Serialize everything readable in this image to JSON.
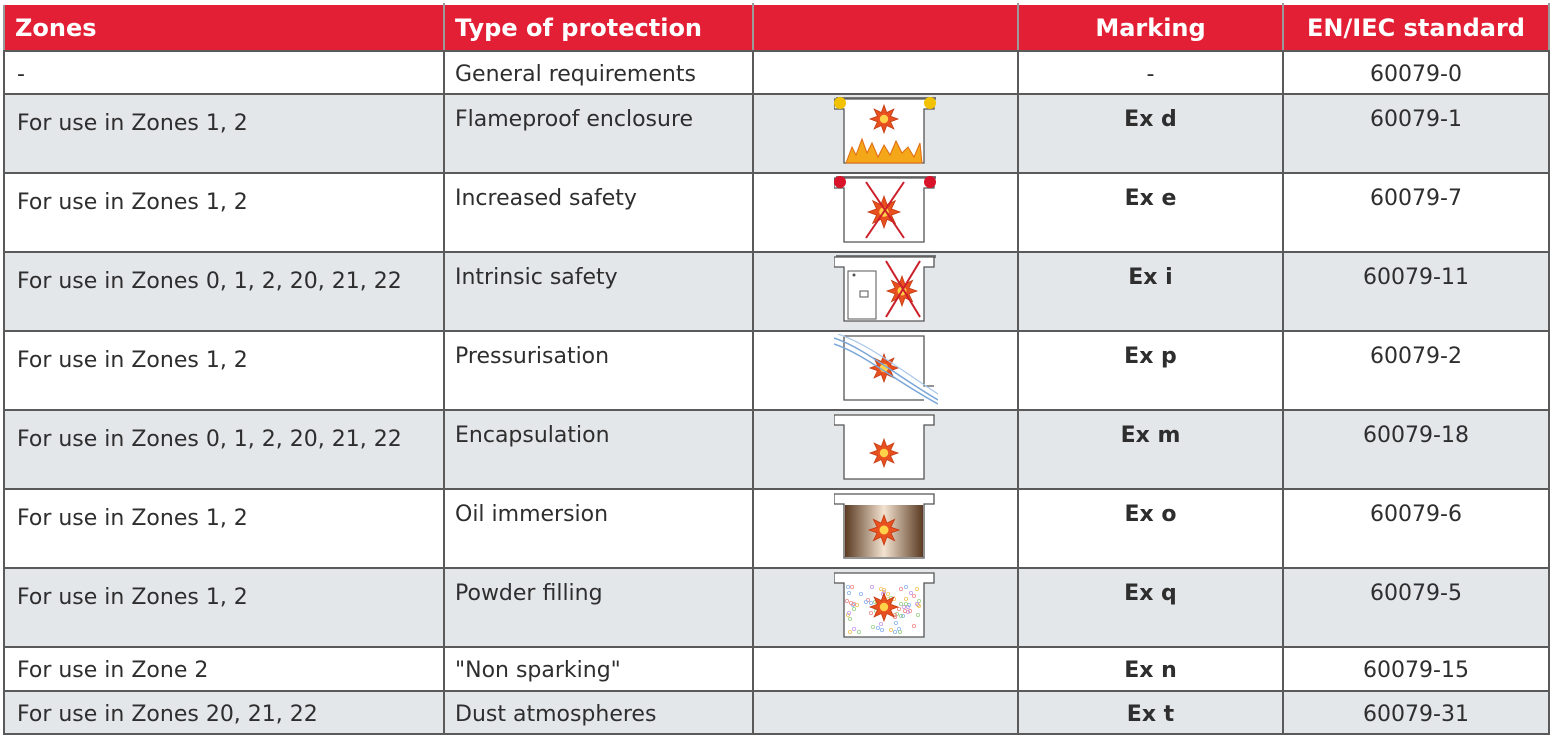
{
  "headers": {
    "zones": "Zones",
    "type": "Type of protection",
    "icon": "",
    "marking": "Marking",
    "standard": "EN/IEC standard"
  },
  "rows": [
    {
      "zones": "-",
      "type": "General requirements",
      "icon": "none",
      "marking": "-",
      "standard": "60079-0",
      "marking_bold": false
    },
    {
      "zones": "For use in Zones 1, 2",
      "type": "Flameproof enclosure",
      "icon": "flameproof-enclosure-icon",
      "marking": "Ex d",
      "standard": "60079-1",
      "marking_bold": true
    },
    {
      "zones": "For use in Zones 1, 2",
      "type": "Increased safety",
      "icon": "increased-safety-icon",
      "marking": "Ex e",
      "standard": "60079-7",
      "marking_bold": true
    },
    {
      "zones": "For use in Zones 0, 1, 2, 20, 21, 22",
      "type": "Intrinsic safety",
      "icon": "intrinsic-safety-icon",
      "marking": "Ex i",
      "standard": "60079-11",
      "marking_bold": true
    },
    {
      "zones": "For use in Zones 1, 2",
      "type": "Pressurisation",
      "icon": "pressurisation-icon",
      "marking": "Ex p",
      "standard": "60079-2",
      "marking_bold": true
    },
    {
      "zones": "For use in Zones 0, 1, 2, 20, 21, 22",
      "type": "Encapsulation",
      "icon": "encapsulation-icon",
      "marking": "Ex m",
      "standard": "60079-18",
      "marking_bold": true
    },
    {
      "zones": "For use in Zones 1, 2",
      "type": "Oil immersion",
      "icon": "oil-immersion-icon",
      "marking": "Ex o",
      "standard": "60079-6",
      "marking_bold": true
    },
    {
      "zones": "For use in Zones 1, 2",
      "type": "Powder filling",
      "icon": "powder-filling-icon",
      "marking": "Ex q",
      "standard": "60079-5",
      "marking_bold": true
    },
    {
      "zones": "For use in Zone 2",
      "type": "\"Non sparking\"",
      "icon": "none",
      "marking": "Ex n",
      "standard": "60079-15",
      "marking_bold": true
    },
    {
      "zones": "For use in Zones 20, 21, 22",
      "type": "Dust atmospheres",
      "icon": "none",
      "marking": "Ex t",
      "standard": "60079-31",
      "marking_bold": true
    }
  ],
  "colors": {
    "header_bg": "#e31f35",
    "header_text": "#ffffff",
    "row_alt_bg": "#e3e7ea",
    "row_bg": "#ffffff",
    "border": "#5a5a5a",
    "explosion": "#e8501f"
  }
}
